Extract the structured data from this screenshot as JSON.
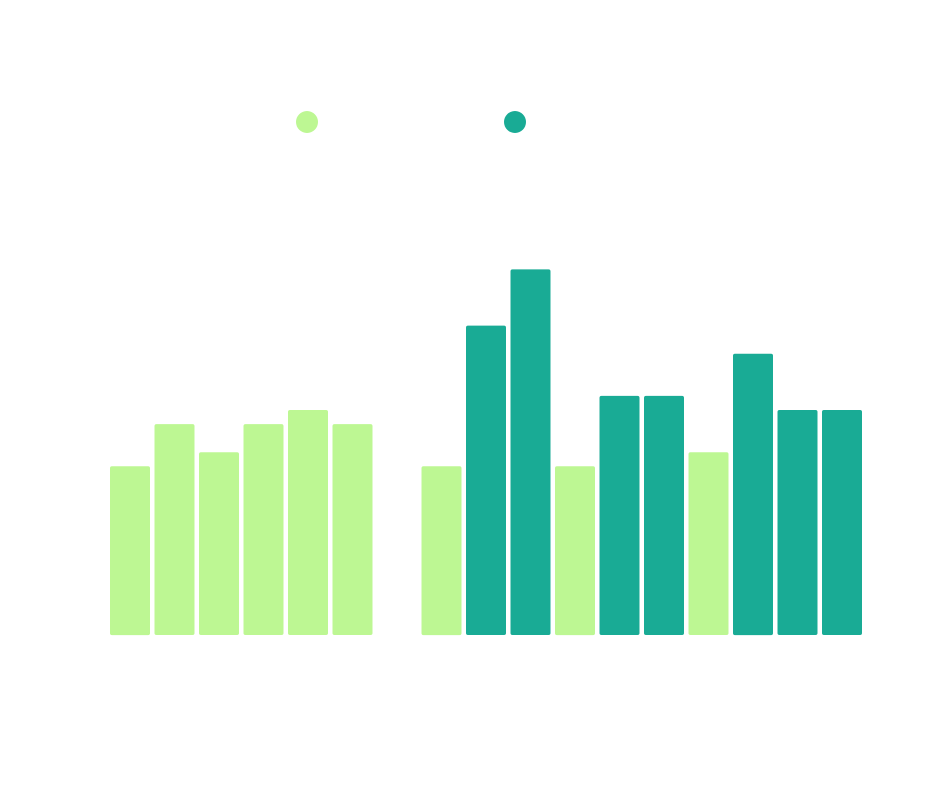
{
  "chart_data": {
    "type": "bar",
    "title": "",
    "xlabel": "",
    "ylabel": "",
    "grid": false,
    "legend_position": "top-center",
    "ylim": [
      0,
      16
    ],
    "series": [
      {
        "color": "#bdf793",
        "values": [
          6,
          7.5,
          6.5,
          7.5,
          8,
          7.5,
          null,
          6,
          null,
          null,
          6,
          null,
          null,
          6.5,
          null,
          null,
          null
        ]
      },
      {
        "color": "#19ab95",
        "values": [
          null,
          null,
          null,
          null,
          null,
          null,
          null,
          null,
          11,
          13,
          null,
          8.5,
          8.5,
          null,
          10,
          8,
          8
        ]
      }
    ]
  }
}
